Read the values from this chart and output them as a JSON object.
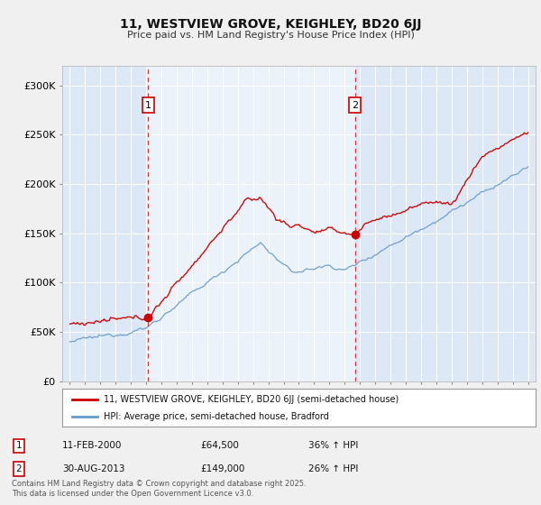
{
  "title1": "11, WESTVIEW GROVE, KEIGHLEY, BD20 6JJ",
  "title2": "Price paid vs. HM Land Registry's House Price Index (HPI)",
  "legend_line1": "11, WESTVIEW GROVE, KEIGHLEY, BD20 6JJ (semi-detached house)",
  "legend_line2": "HPI: Average price, semi-detached house, Bradford",
  "annotation1_label": "1",
  "annotation1_date": "11-FEB-2000",
  "annotation1_price": "£64,500",
  "annotation1_hpi": "36% ↑ HPI",
  "annotation2_label": "2",
  "annotation2_date": "30-AUG-2013",
  "annotation2_price": "£149,000",
  "annotation2_hpi": "26% ↑ HPI",
  "footnote": "Contains HM Land Registry data © Crown copyright and database right 2025.\nThis data is licensed under the Open Government Licence v3.0.",
  "sale1_year": 2000.12,
  "sale1_price": 64500,
  "sale2_year": 2013.67,
  "sale2_price": 149000,
  "vline1_x": 2000.12,
  "vline2_x": 2013.67,
  "xlim": [
    1994.5,
    2025.5
  ],
  "ylim": [
    0,
    320000
  ],
  "yticks": [
    0,
    50000,
    100000,
    150000,
    200000,
    250000,
    300000
  ],
  "ytick_labels": [
    "£0",
    "£50K",
    "£100K",
    "£150K",
    "£200K",
    "£250K",
    "£300K"
  ],
  "background_color": "#f0f0f0",
  "plot_bg_color": "#dce8f5",
  "shade_color": "#dce8f5",
  "red_color": "#cc0000",
  "blue_color": "#6699cc",
  "vline_color": "#cc0000",
  "grid_color": "#ffffff",
  "num_box_color": "#cc0000"
}
